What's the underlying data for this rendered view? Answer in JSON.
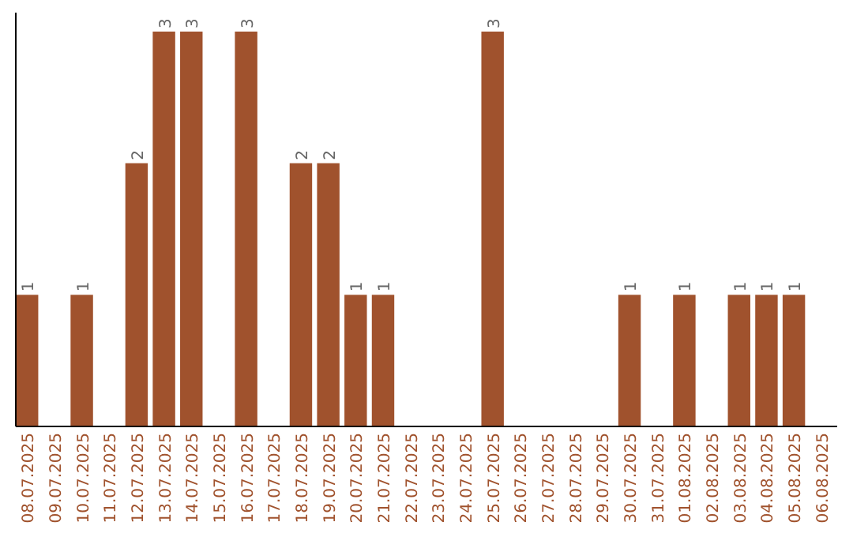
{
  "chart_data": {
    "type": "bar",
    "categories": [
      "08.07.2025",
      "09.07.2025",
      "10.07.2025",
      "11.07.2025",
      "12.07.2025",
      "13.07.2025",
      "14.07.2025",
      "15.07.2025",
      "16.07.2025",
      "17.07.2025",
      "18.07.2025",
      "19.07.2025",
      "20.07.2025",
      "21.07.2025",
      "22.07.2025",
      "23.07.2025",
      "24.07.2025",
      "25.07.2025",
      "26.07.2025",
      "27.07.2025",
      "28.07.2025",
      "29.07.2025",
      "30.07.2025",
      "31.07.2025",
      "01.08.2025",
      "02.08.2025",
      "03.08.2025",
      "04.08.2025",
      "05.08.2025",
      "06.08.2025"
    ],
    "values": [
      1,
      0,
      1,
      0,
      2,
      3,
      3,
      0,
      3,
      0,
      2,
      2,
      1,
      1,
      0,
      0,
      0,
      3,
      0,
      0,
      0,
      0,
      1,
      0,
      1,
      0,
      1,
      1,
      1,
      0
    ],
    "value_labels": [
      "1",
      null,
      "1",
      null,
      "2",
      "3",
      "3",
      null,
      "3",
      null,
      "2",
      "2",
      "1",
      "1",
      null,
      null,
      null,
      "3",
      null,
      null,
      null,
      null,
      "1",
      null,
      "1",
      null,
      "1",
      "1",
      "1",
      null
    ],
    "color": "#a0522d",
    "tick_labels": "x",
    "grid": false
  }
}
